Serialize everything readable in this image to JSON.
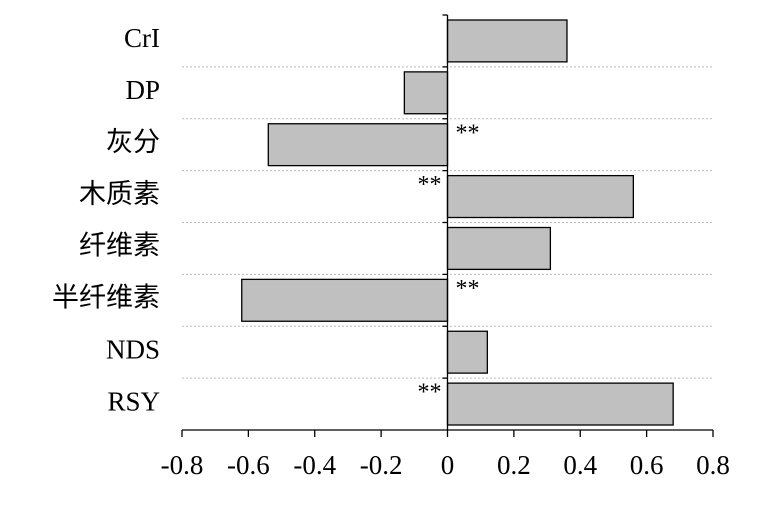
{
  "chart_data": {
    "type": "barh",
    "categories": [
      "CrI",
      "DP",
      "灰分",
      "木质素",
      "纤维素",
      "半纤维素",
      "NDS",
      "RSY"
    ],
    "values": [
      0.36,
      -0.13,
      -0.54,
      0.56,
      0.31,
      -0.62,
      0.12,
      0.68
    ],
    "significance": [
      null,
      null,
      "**",
      "**",
      null,
      "**",
      null,
      "**"
    ],
    "color": "#c0c0c0",
    "xlim": [
      -0.8,
      0.8
    ],
    "xticks": [
      -0.8,
      -0.6,
      -0.4,
      -0.2,
      0,
      0.2,
      0.4,
      0.6,
      0.8
    ],
    "grid": true
  }
}
